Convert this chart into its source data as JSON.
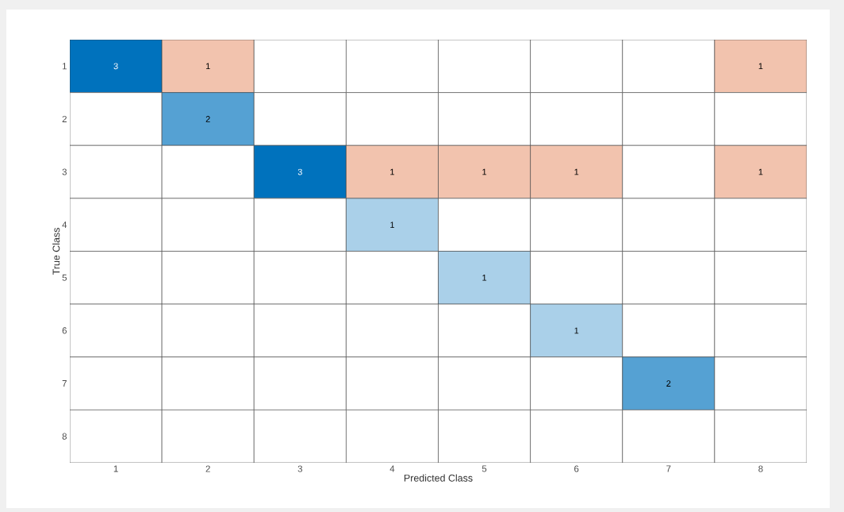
{
  "chart_data": {
    "type": "heatmap",
    "xlabel": "Predicted Class",
    "ylabel": "True Class",
    "categories": [
      "1",
      "2",
      "3",
      "4",
      "5",
      "6",
      "7",
      "8"
    ],
    "y_categories": [
      "1",
      "2",
      "3",
      "4",
      "5",
      "6",
      "7",
      "8"
    ],
    "cells": [
      [
        3,
        1,
        null,
        null,
        null,
        null,
        null,
        1
      ],
      [
        null,
        2,
        null,
        null,
        null,
        null,
        null,
        null
      ],
      [
        null,
        null,
        3,
        1,
        1,
        1,
        null,
        1
      ],
      [
        null,
        null,
        null,
        1,
        null,
        null,
        null,
        null
      ],
      [
        null,
        null,
        null,
        null,
        1,
        null,
        null,
        null
      ],
      [
        null,
        null,
        null,
        null,
        null,
        1,
        null,
        null
      ],
      [
        null,
        null,
        null,
        null,
        null,
        null,
        2,
        null
      ],
      [
        null,
        null,
        null,
        null,
        null,
        null,
        null,
        null
      ]
    ],
    "data_labels": true
  }
}
